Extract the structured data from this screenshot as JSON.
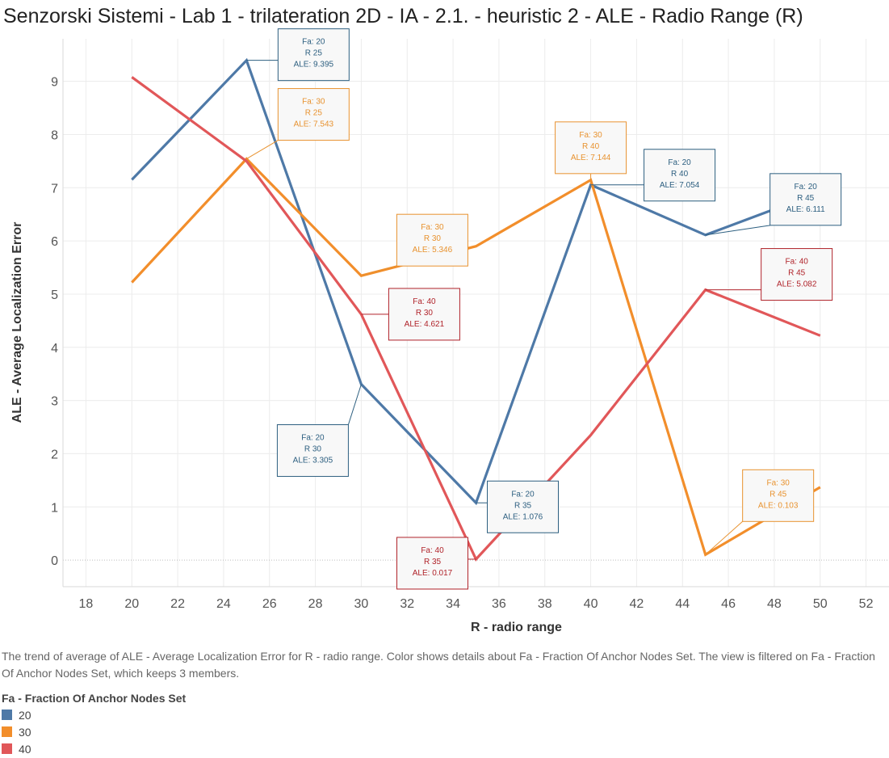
{
  "colors": {
    "fa20": "#4e79a7",
    "fa30": "#f28e2b",
    "fa40": "#e15759",
    "ann20": "#2d5f80",
    "ann30": "#e8922f",
    "ann40": "#b0232a"
  },
  "chart_data": {
    "type": "line",
    "title": "Senzorski Sistemi - Lab 1 - trilateration 2D - IA - 2.1. - heuristic 2 - ALE - Radio Range (R)",
    "xlabel": "R - radio range",
    "ylabel": "ALE - Average Localization Error",
    "xlim": [
      17,
      53
    ],
    "ylim": [
      -0.5,
      9.8
    ],
    "x_ticks": [
      18,
      20,
      22,
      24,
      26,
      28,
      30,
      32,
      34,
      36,
      38,
      40,
      42,
      44,
      46,
      48,
      50,
      52
    ],
    "y_ticks": [
      0,
      1,
      2,
      3,
      4,
      5,
      6,
      7,
      8,
      9
    ],
    "grid": true,
    "x": [
      20,
      25,
      30,
      35,
      40,
      45,
      50
    ],
    "series": [
      {
        "name": "20",
        "values": [
          7.15,
          9.395,
          3.305,
          1.076,
          7.054,
          6.111,
          6.92
        ]
      },
      {
        "name": "30",
        "values": [
          5.22,
          7.543,
          5.346,
          5.9,
          7.144,
          0.103,
          1.37
        ]
      },
      {
        "name": "40",
        "values": [
          9.08,
          7.5,
          4.621,
          0.017,
          2.35,
          5.082,
          4.22
        ]
      }
    ],
    "annotations": [
      {
        "series": "20",
        "x": 25,
        "lines": [
          "Fa: 20",
          "R 25",
          "ALE: 9.395"
        ]
      },
      {
        "series": "30",
        "x": 25,
        "lines": [
          "Fa: 30",
          "R 25",
          "ALE: 7.543"
        ]
      },
      {
        "series": "30",
        "x": 30,
        "lines": [
          "Fa: 30",
          "R 30",
          "ALE: 5.346"
        ]
      },
      {
        "series": "40",
        "x": 30,
        "lines": [
          "Fa: 40",
          "R 30",
          "ALE: 4.621"
        ]
      },
      {
        "series": "20",
        "x": 30,
        "lines": [
          "Fa: 20",
          "R 30",
          "ALE: 3.305"
        ]
      },
      {
        "series": "20",
        "x": 35,
        "lines": [
          "Fa: 20",
          "R 35",
          "ALE: 1.076"
        ]
      },
      {
        "series": "40",
        "x": 35,
        "lines": [
          "Fa: 40",
          "R 35",
          "ALE: 0.017"
        ]
      },
      {
        "series": "30",
        "x": 40,
        "lines": [
          "Fa: 30",
          "R 40",
          "ALE: 7.144"
        ]
      },
      {
        "series": "20",
        "x": 40,
        "lines": [
          "Fa: 20",
          "R 40",
          "ALE: 7.054"
        ]
      },
      {
        "series": "20",
        "x": 45,
        "lines": [
          "Fa: 20",
          "R 45",
          "ALE: 6.111"
        ]
      },
      {
        "series": "40",
        "x": 45,
        "lines": [
          "Fa: 40",
          "R 45",
          "ALE: 5.082"
        ]
      },
      {
        "series": "30",
        "x": 45,
        "lines": [
          "Fa: 30",
          "R 45",
          "ALE: 0.103"
        ]
      }
    ]
  },
  "caption": "The trend of average of ALE - Average Localization Error for R - radio range.  Color shows details about Fa - Fraction Of Anchor Nodes Set. The view is filtered on Fa - Fraction Of Anchor Nodes Set, which keeps 3 members.",
  "legend": {
    "title": "Fa - Fraction Of Anchor Nodes Set",
    "items": [
      {
        "label": "20",
        "color": "#4e79a7"
      },
      {
        "label": "30",
        "color": "#f28e2b"
      },
      {
        "label": "40",
        "color": "#e15759"
      }
    ]
  }
}
